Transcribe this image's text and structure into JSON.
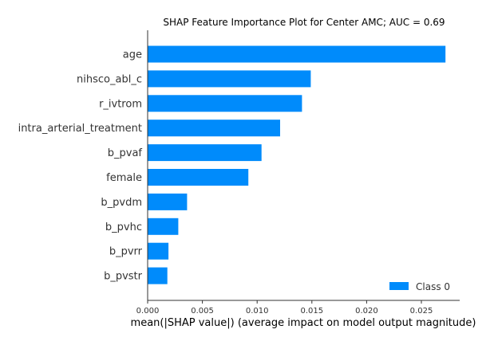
{
  "chart_data": {
    "type": "bar",
    "orientation": "horizontal",
    "title": "SHAP Feature Importance Plot for Center AMC; AUC = 0.69",
    "xlabel": "mean(|SHAP value|) (average impact on model output magnitude)",
    "ylabel": "",
    "categories": [
      "age",
      "nihsco_abl_c",
      "r_ivtrom",
      "intra_arterial_treatment",
      "b_pvaf",
      "female",
      "b_pvdm",
      "b_pvhc",
      "b_pvrr",
      "b_pvstr"
    ],
    "series": [
      {
        "name": "Class 0",
        "color": "#008bfb",
        "values": [
          0.0272,
          0.0149,
          0.0141,
          0.0121,
          0.0104,
          0.0092,
          0.0036,
          0.0028,
          0.0019,
          0.0018
        ]
      }
    ],
    "xlim": [
      0,
      0.0285
    ],
    "xticks": [
      0,
      0.005,
      0.01,
      0.015,
      0.02,
      0.025
    ],
    "xtick_labels": [
      "0.000",
      "0.005",
      "0.010",
      "0.015",
      "0.020",
      "0.025"
    ],
    "grid": false,
    "legend_position": "lower-right"
  }
}
